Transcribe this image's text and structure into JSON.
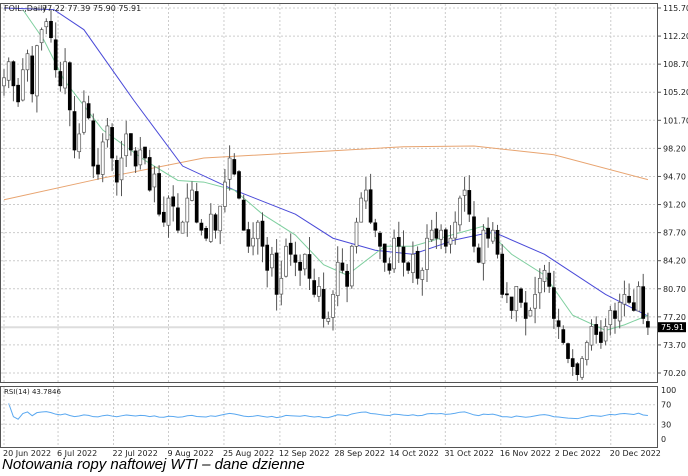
{
  "header": {
    "symbol": "FOIL.,Daily",
    "ohlc": "77.22 77.39 75.90 75.91"
  },
  "rsi_label": "RSI(14) 43.7846",
  "caption": "Notowania ropy naftowej WTI – dane dzienne",
  "colors": {
    "ma_fast": "#7fcf9f",
    "ma_mid": "#4a4ad8",
    "ma_slow": "#e8a470",
    "rsi": "#5aa8f0"
  },
  "chart_data": {
    "type": "candlestick",
    "title": "FOIL.,Daily",
    "ylim": [
      70.2,
      115.7
    ],
    "y_ticks": [
      "115.70",
      "112.20",
      "108.70",
      "105.20",
      "101.70",
      "98.20",
      "94.70",
      "91.20",
      "87.70",
      "84.20",
      "80.70",
      "77.20",
      "73.70",
      "70.20"
    ],
    "x_ticks": [
      {
        "bar": 0,
        "label": "20 Jun 2022"
      },
      {
        "bar": 11.5,
        "label": "6 Jul 2022"
      },
      {
        "bar": 23.3,
        "label": "22 Jul 2022"
      },
      {
        "bar": 35,
        "label": "9 Aug 2022"
      },
      {
        "bar": 46.8,
        "label": "25 Aug 2022"
      },
      {
        "bar": 58.7,
        "label": "12 Sep 2022"
      },
      {
        "bar": 70.5,
        "label": "28 Sep 2022"
      },
      {
        "bar": 82.2,
        "label": "14 Oct 2022"
      },
      {
        "bar": 93.9,
        "label": "31 Oct 2022"
      },
      {
        "bar": 105.7,
        "label": "16 Nov 2022"
      },
      {
        "bar": 117.4,
        "label": "2 Dec 2022"
      },
      {
        "bar": 129.1,
        "label": "20 Dec 2022"
      }
    ],
    "last_price": "75.91",
    "closes": [
      107,
      109,
      106,
      104,
      108,
      110,
      105,
      111,
      113,
      114,
      112,
      108,
      106,
      109,
      103,
      98,
      100,
      104,
      102,
      96,
      95,
      99,
      101,
      97,
      94,
      97,
      100,
      98,
      96,
      98,
      97,
      93,
      95,
      90,
      89,
      92,
      91,
      88,
      89,
      92,
      93,
      89,
      88,
      87,
      90,
      88,
      91,
      94,
      97,
      95,
      92,
      88,
      86,
      87,
      89,
      86,
      83,
      85,
      80,
      82,
      86,
      85,
      84,
      83,
      85,
      82,
      80,
      81,
      77,
      77,
      80,
      84,
      83,
      81,
      86,
      89,
      92,
      93,
      89,
      88,
      86,
      84,
      83,
      87,
      86,
      84,
      83,
      85,
      82,
      83,
      87,
      88,
      87,
      88,
      86,
      87,
      89,
      92,
      93,
      90,
      86,
      84,
      88,
      87,
      88,
      85,
      80,
      80,
      78,
      81,
      79,
      77,
      78,
      80,
      82,
      83,
      81,
      77,
      76,
      74,
      72,
      71,
      70,
      72,
      74,
      76,
      75,
      74,
      76,
      78,
      77,
      79,
      80,
      79,
      78,
      81,
      77,
      75.91
    ],
    "ma_fast": [
      [
        4,
        115.5
      ],
      [
        8.5,
        111.7
      ],
      [
        12.8,
        106.7
      ],
      [
        21,
        100.5
      ],
      [
        30,
        96.7
      ],
      [
        37,
        94.2
      ],
      [
        42.5,
        94
      ],
      [
        49,
        93
      ],
      [
        55,
        90
      ],
      [
        62,
        87.4
      ],
      [
        68,
        83.7
      ],
      [
        73,
        82.4
      ],
      [
        81,
        86
      ],
      [
        87,
        86
      ],
      [
        94,
        87.2
      ],
      [
        102,
        88.5
      ],
      [
        108,
        85
      ],
      [
        115,
        82.4
      ],
      [
        121,
        77.4
      ],
      [
        128,
        75.5
      ],
      [
        132,
        76.2
      ],
      [
        137,
        77.4
      ]
    ],
    "ma_mid": [
      [
        0,
        115.7
      ],
      [
        10.6,
        115.5
      ],
      [
        17,
        113
      ],
      [
        27.6,
        104.2
      ],
      [
        38,
        96
      ],
      [
        49,
        93
      ],
      [
        62,
        90
      ],
      [
        70,
        87
      ],
      [
        79,
        85.5
      ],
      [
        87,
        85
      ],
      [
        96,
        86.8
      ],
      [
        104,
        87.8
      ],
      [
        115,
        85
      ],
      [
        128,
        80
      ],
      [
        137,
        77.3
      ]
    ],
    "ma_slow": [
      [
        0,
        91.8
      ],
      [
        21,
        94.5
      ],
      [
        42.5,
        97
      ],
      [
        64,
        97.7
      ],
      [
        85,
        98.4
      ],
      [
        100,
        98.5
      ],
      [
        117,
        97.4
      ],
      [
        137,
        94.3
      ]
    ],
    "rsi_ylim": [
      0,
      100
    ],
    "rsi_levels": [
      "100",
      "70",
      "30",
      "0"
    ]
  }
}
